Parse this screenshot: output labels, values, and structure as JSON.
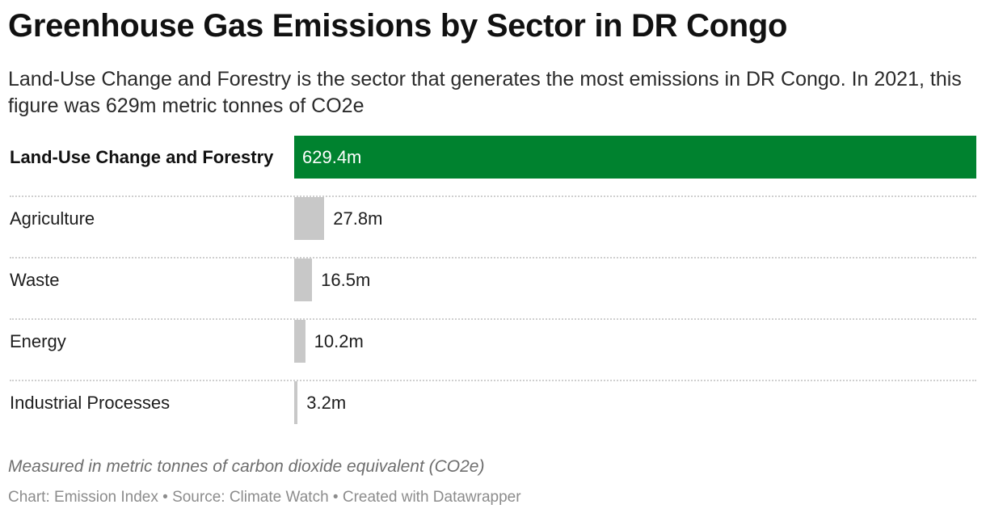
{
  "chart_data": {
    "type": "bar",
    "orientation": "horizontal",
    "title": "Greenhouse Gas Emissions by Sector in DR Congo",
    "subtitle": "Land-Use Change and Forestry is the sector that generates the most emissions in DR Congo. In 2021, this figure was 629m metric tonnes of CO2e",
    "categories": [
      "Land-Use Change and Forestry",
      "Agriculture",
      "Waste",
      "Energy",
      "Industrial Processes"
    ],
    "values": [
      629.4,
      27.8,
      16.5,
      10.2,
      3.2
    ],
    "value_labels": [
      "629.4m",
      "27.8m",
      "16.5m",
      "10.2m",
      "3.2m"
    ],
    "highlight_index": 0,
    "colors": {
      "highlight": "#00822f",
      "default": "#c8c8c8"
    },
    "xlim": [
      0,
      629.4
    ],
    "grid": false,
    "note": "Measured in metric tonnes of carbon dioxide equivalent (CO2e)",
    "footer": "Chart: Emission Index • Source: Climate Watch • Created with Datawrapper"
  }
}
